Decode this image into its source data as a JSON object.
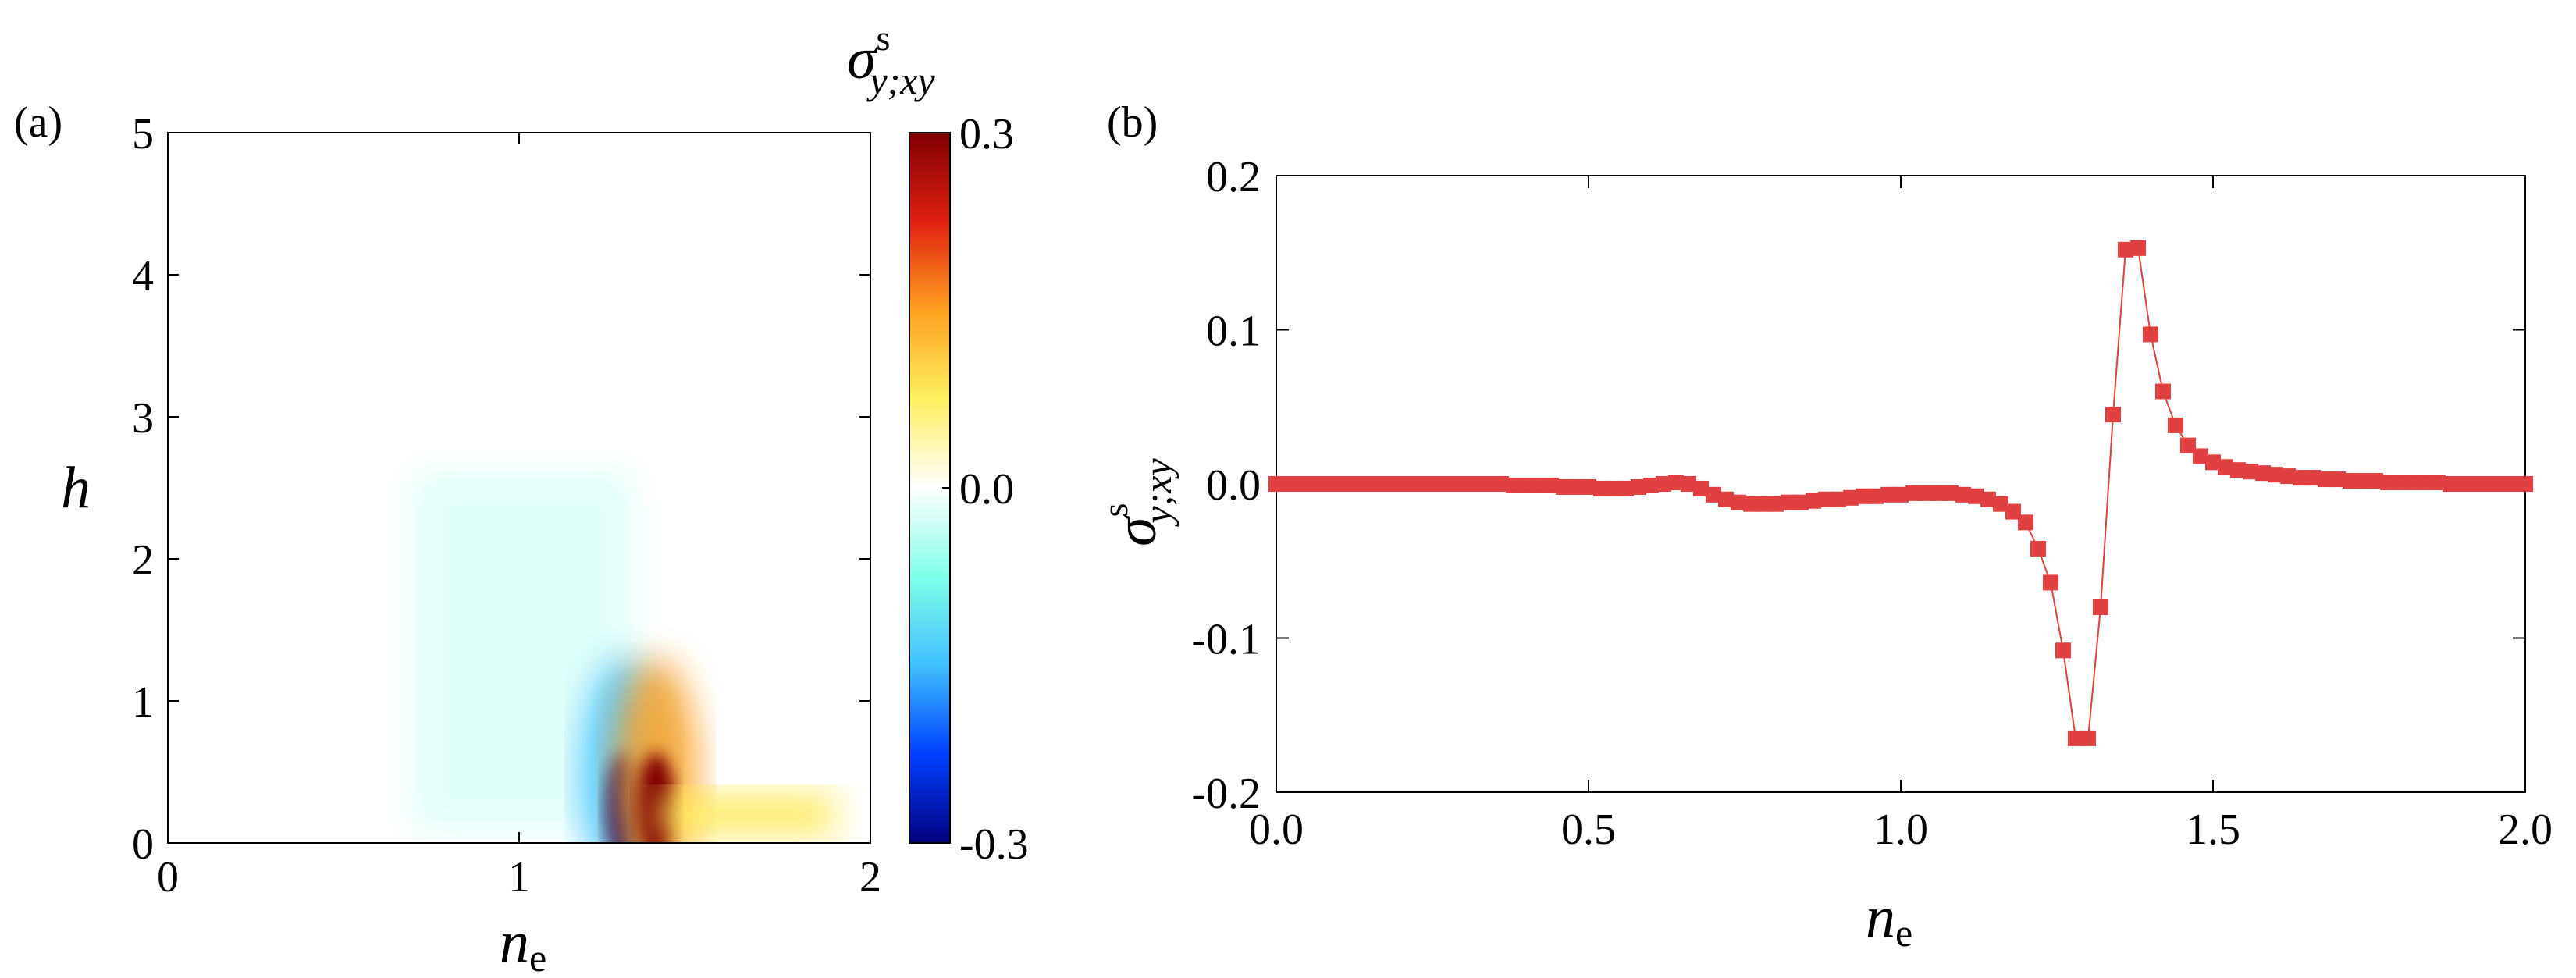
{
  "panels": {
    "a": {
      "label": "(a)"
    },
    "b": {
      "label": "(b)"
    }
  },
  "colorbar": {
    "symbol": "σ",
    "superscript": "s",
    "subscript": "y;xy",
    "ticks": [
      "0.3",
      "0.0",
      "-0.3"
    ],
    "range": [
      -0.3,
      0.3
    ],
    "colormap": [
      "#00007f",
      "#0040ff",
      "#40c0ff",
      "#80ffe8",
      "#ffffff",
      "#fff060",
      "#ffa020",
      "#e02010",
      "#7f0000"
    ]
  },
  "chart_data": [
    {
      "type": "heatmap",
      "panel": "(a)",
      "xlabel": "n",
      "xlabel_sub": "e",
      "ylabel": "h",
      "xlim": [
        0,
        2
      ],
      "ylim": [
        0,
        5
      ],
      "xticks": [
        "0",
        "1",
        "2"
      ],
      "yticks": [
        "0",
        "1",
        "2",
        "3",
        "4",
        "5"
      ],
      "value_range": [
        -0.3,
        0.3
      ],
      "features": [
        {
          "kind": "weak-negative-region",
          "n_e_range": [
            0.7,
            1.32
          ],
          "h_range": [
            0.1,
            2.6
          ],
          "approx_value": -0.02
        },
        {
          "kind": "negative-peak",
          "n_e": 1.3,
          "h": 0.25,
          "approx_value": -0.3
        },
        {
          "kind": "positive-peak",
          "n_e": 1.39,
          "h": 0.25,
          "approx_value": 0.3
        },
        {
          "kind": "positive-tail",
          "n_e_range": [
            1.4,
            1.9
          ],
          "h_range": [
            0.05,
            0.35
          ],
          "approx_value": 0.08
        }
      ]
    },
    {
      "type": "line",
      "panel": "(b)",
      "xlabel": "n",
      "xlabel_sub": "e",
      "ylabel_symbol": "σ",
      "ylabel_sup": "s",
      "ylabel_sub": "y;xy",
      "xlim": [
        0,
        2
      ],
      "ylim": [
        -0.2,
        0.2
      ],
      "xticks": [
        "0.0",
        "0.5",
        "1.0",
        "1.5",
        "2.0"
      ],
      "yticks": [
        "0.2",
        "0.1",
        "0.0",
        "-0.1",
        "-0.2"
      ],
      "marker": "square",
      "color": "#e04040",
      "x": [
        0.0,
        0.02,
        0.04,
        0.06,
        0.08,
        0.1,
        0.12,
        0.14,
        0.16,
        0.18,
        0.2,
        0.22,
        0.24,
        0.26,
        0.28,
        0.3,
        0.32,
        0.34,
        0.36,
        0.38,
        0.4,
        0.42,
        0.44,
        0.46,
        0.48,
        0.5,
        0.52,
        0.54,
        0.56,
        0.58,
        0.6,
        0.62,
        0.64,
        0.66,
        0.68,
        0.7,
        0.72,
        0.74,
        0.76,
        0.78,
        0.8,
        0.82,
        0.84,
        0.86,
        0.88,
        0.9,
        0.92,
        0.94,
        0.96,
        0.98,
        1.0,
        1.02,
        1.04,
        1.06,
        1.08,
        1.1,
        1.12,
        1.14,
        1.16,
        1.18,
        1.2,
        1.22,
        1.24,
        1.26,
        1.28,
        1.3,
        1.32,
        1.34,
        1.36,
        1.38,
        1.4,
        1.42,
        1.44,
        1.46,
        1.48,
        1.5,
        1.52,
        1.54,
        1.56,
        1.58,
        1.6,
        1.62,
        1.64,
        1.66,
        1.68,
        1.7,
        1.72,
        1.74,
        1.76,
        1.78,
        1.8,
        1.82,
        1.84,
        1.86,
        1.88,
        1.9,
        1.92,
        1.94,
        1.96,
        1.98,
        2.0
      ],
      "y": [
        0.0,
        0.0,
        0.0,
        0.0,
        0.0,
        0.0,
        0.0,
        0.0,
        0.0,
        0.0,
        0.0,
        0.0,
        0.0,
        0.0,
        0.0,
        0.0,
        0.0,
        0.0,
        0.0,
        -0.001,
        -0.001,
        -0.001,
        -0.001,
        -0.002,
        -0.002,
        -0.002,
        -0.003,
        -0.003,
        -0.003,
        -0.002,
        -0.001,
        0.0,
        0.001,
        0.0,
        -0.003,
        -0.007,
        -0.01,
        -0.012,
        -0.013,
        -0.013,
        -0.013,
        -0.012,
        -0.012,
        -0.011,
        -0.01,
        -0.01,
        -0.009,
        -0.008,
        -0.008,
        -0.007,
        -0.007,
        -0.006,
        -0.006,
        -0.006,
        -0.006,
        -0.007,
        -0.008,
        -0.01,
        -0.013,
        -0.018,
        -0.025,
        -0.042,
        -0.064,
        -0.108,
        -0.165,
        -0.165,
        -0.08,
        0.045,
        0.152,
        0.153,
        0.097,
        0.06,
        0.038,
        0.025,
        0.018,
        0.014,
        0.011,
        0.009,
        0.008,
        0.007,
        0.006,
        0.005,
        0.004,
        0.004,
        0.003,
        0.003,
        0.002,
        0.002,
        0.002,
        0.001,
        0.001,
        0.001,
        0.001,
        0.001,
        0.0,
        0.0,
        0.0,
        0.0,
        0.0,
        0.0,
        0.0
      ]
    }
  ]
}
